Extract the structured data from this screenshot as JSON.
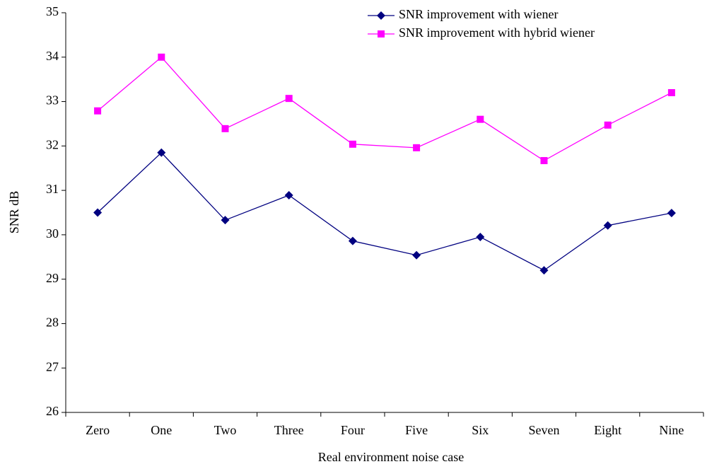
{
  "chart_data": {
    "type": "line",
    "x_label": "Real environment noise case",
    "y_label": "SNR dB",
    "categories": [
      "Zero",
      "One",
      "Two",
      "Three",
      "Four",
      "Five",
      "Six",
      "Seven",
      "Eight",
      "Nine"
    ],
    "series": [
      {
        "name": "SNR improvement with wiener",
        "color": "#000080",
        "marker": "diamond",
        "values": [
          30.5,
          31.85,
          30.33,
          30.89,
          29.86,
          29.54,
          29.95,
          29.2,
          30.21,
          30.49
        ]
      },
      {
        "name": "SNR improvement with hybrid wiener",
        "color": "#ff00ff",
        "marker": "square",
        "values": [
          32.79,
          34.0,
          32.39,
          33.07,
          32.04,
          31.96,
          32.6,
          31.67,
          32.47,
          33.2
        ]
      }
    ],
    "ylim": [
      26,
      35
    ],
    "yticks": [
      26,
      27,
      28,
      29,
      30,
      31,
      32,
      33,
      34,
      35
    ],
    "grid": false,
    "legend": "upper right"
  }
}
